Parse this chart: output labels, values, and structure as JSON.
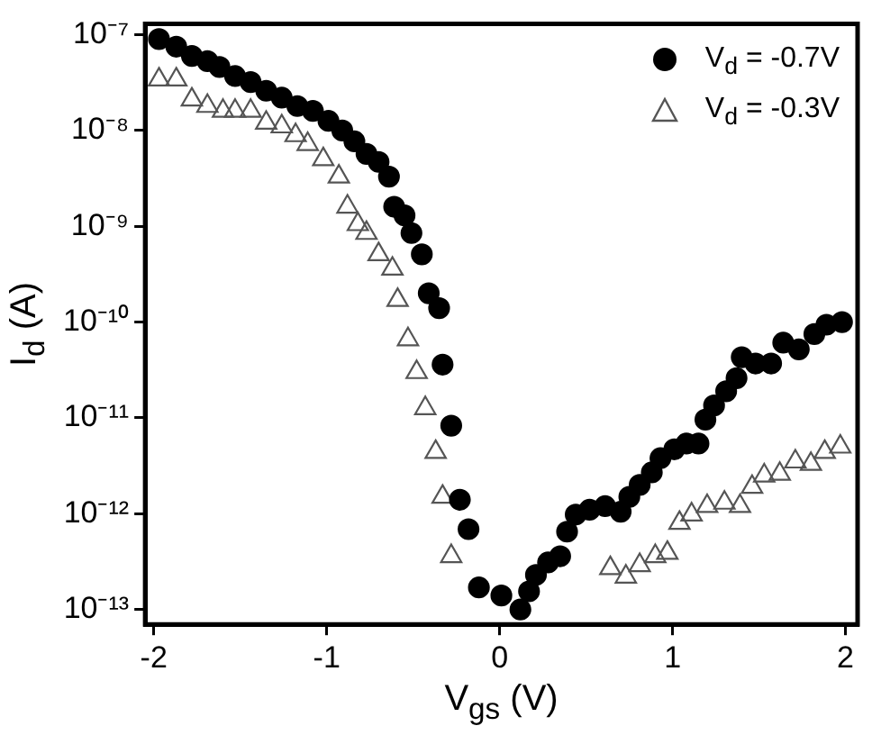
{
  "chart_data": {
    "type": "scatter",
    "xlabel": "V$_{gs}$ (V)",
    "ylabel": "I$_{d}$ (A)",
    "log": "y",
    "grid": false,
    "legend": "top right",
    "xlim": [
      -2.05,
      2.07
    ],
    "xticks": [
      -2,
      -1,
      0,
      1,
      2
    ],
    "ylim": [
      7e-14,
      1.3e-07
    ],
    "yticks": [
      {
        "value": 1e-13,
        "label": "10⁻¹³"
      },
      {
        "value": 1e-12,
        "label": "10⁻¹²"
      },
      {
        "value": 1e-11,
        "label": "10⁻¹¹"
      },
      {
        "value": 1e-10,
        "label": "10⁻¹⁰"
      },
      {
        "value": 1e-09,
        "label": "10⁻⁹"
      },
      {
        "value": 1e-08,
        "label": "10⁻⁸"
      },
      {
        "value": 1e-07,
        "label": "10⁻⁷"
      }
    ],
    "series": [
      {
        "name": "V$_{d}$ = -0.7V",
        "color": "#000000",
        "marker": "circle",
        "x": [
          -1.97,
          -1.87,
          -1.78,
          -1.69,
          -1.62,
          -1.53,
          -1.44,
          -1.35,
          -1.26,
          -1.17,
          -1.08,
          -0.99,
          -0.91,
          -0.84,
          -0.77,
          -0.7,
          -0.64,
          -0.61,
          -0.55,
          -0.51,
          -0.45,
          -0.41,
          -0.35,
          -0.33,
          -0.28,
          -0.23,
          -0.18,
          -0.12,
          0.01,
          0.12,
          0.17,
          0.21,
          0.28,
          0.35,
          0.39,
          0.44,
          0.52,
          0.61,
          0.7,
          0.75,
          0.81,
          0.88,
          0.93,
          1.01,
          1.08,
          1.15,
          1.19,
          1.24,
          1.31,
          1.37,
          1.4,
          1.48,
          1.57,
          1.64,
          1.73,
          1.82,
          1.89,
          1.98
        ],
        "values": [
          9e-08,
          7.5e-08,
          6e-08,
          5.3e-08,
          4.6e-08,
          3.7e-08,
          3.2e-08,
          2.6e-08,
          2.2e-08,
          1.8e-08,
          1.6e-08,
          1.26e-08,
          1e-08,
          7.7e-09,
          5.7e-09,
          4.7e-09,
          3.3e-09,
          1.6e-09,
          1.3e-09,
          8.5e-10,
          5.1e-10,
          2e-10,
          1.4e-10,
          3.6e-11,
          8.3e-12,
          1.4e-12,
          6.9e-13,
          1.7e-13,
          1.4e-13,
          1e-13,
          1.55e-13,
          2.3e-13,
          3.1e-13,
          3.6e-13,
          6.5e-13,
          9.8e-13,
          1.1e-12,
          1.2e-12,
          1.05e-12,
          1.5e-12,
          2e-12,
          2.7e-12,
          3.8e-12,
          4.7e-12,
          5.4e-12,
          5.4e-12,
          9.6e-12,
          1.35e-11,
          1.9e-11,
          2.6e-11,
          4.3e-11,
          3.7e-11,
          3.7e-11,
          6.1e-11,
          5.2e-11,
          7.5e-11,
          9.4e-11,
          1e-10
        ]
      },
      {
        "name": "V$_{d}$ = -0.3V",
        "color": "#555555",
        "marker": "triangle",
        "x": [
          -1.97,
          -1.87,
          -1.78,
          -1.69,
          -1.6,
          -1.53,
          -1.44,
          -1.35,
          -1.26,
          -1.18,
          -1.11,
          -1.02,
          -0.93,
          -0.88,
          -0.82,
          -0.77,
          -0.7,
          -0.62,
          -0.59,
          -0.53,
          -0.48,
          -0.43,
          -0.37,
          -0.33,
          -0.28,
          0.64,
          0.73,
          0.81,
          0.9,
          0.97,
          1.04,
          1.11,
          1.2,
          1.3,
          1.39,
          1.46,
          1.53,
          1.62,
          1.71,
          1.8,
          1.88,
          1.97
        ],
        "values": [
          3.4e-08,
          3.4e-08,
          2.1e-08,
          1.8e-08,
          1.6e-08,
          1.6e-08,
          1.6e-08,
          1.2e-08,
          1.1e-08,
          8.9e-09,
          7.2e-09,
          5e-09,
          3.3e-09,
          1.6e-09,
          1.05e-09,
          8.5e-10,
          5.1e-10,
          3.6e-10,
          1.7e-10,
          6.6e-11,
          3e-11,
          1.26e-11,
          4.4e-12,
          1.5e-12,
          3.6e-13,
          2.7e-13,
          2.2e-13,
          2.9e-13,
          3.6e-13,
          3.9e-13,
          8e-13,
          9.8e-13,
          1.2e-12,
          1.3e-12,
          1.2e-12,
          1.9e-12,
          2.5e-12,
          2.6e-12,
          3.5e-12,
          3.3e-12,
          4.4e-12,
          5e-12
        ]
      }
    ]
  }
}
